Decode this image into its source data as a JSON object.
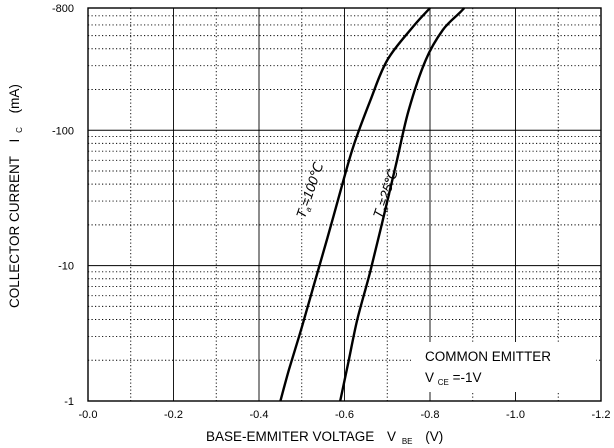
{
  "chart_data": {
    "type": "line",
    "title": "",
    "xlabel": "BASE-EMMITER VOLTAGE",
    "xlabel_symbol": "V",
    "xlabel_symbol_sub": "BE",
    "xlabel_unit": "(V)",
    "ylabel": "COLLECTOR CURRENT",
    "ylabel_symbol": "I",
    "ylabel_symbol_sub": "C",
    "ylabel_unit": "(mA)",
    "x_scale": "linear",
    "y_scale": "log",
    "xlim": [
      0.0,
      -1.2
    ],
    "ylim": [
      -1,
      -800
    ],
    "x_ticks": [
      0.0,
      -0.2,
      -0.4,
      -0.6,
      -0.8,
      -1.0,
      -1.2
    ],
    "x_tick_labels": [
      "-0.0",
      "-0.2",
      "-0.4",
      "-0.6",
      "-0.8",
      "-1.0",
      "-1.2"
    ],
    "x_minor_ticks": [
      -0.1,
      -0.3,
      -0.5,
      -0.7,
      -0.9,
      -1.1
    ],
    "y_ticks": [
      -1,
      -10,
      -100,
      -800
    ],
    "y_tick_labels": [
      "-1",
      "-10",
      "-100",
      "-800"
    ],
    "grid": true,
    "series": [
      {
        "label_prefix": "T",
        "label_sub": "a",
        "label_suffix": "=100℃",
        "x": [
          -0.45,
          -0.47,
          -0.5,
          -0.53,
          -0.56,
          -0.59,
          -0.62,
          -0.66,
          -0.7,
          -0.76,
          -0.8
        ],
        "y": [
          -1,
          -1.7,
          -3.5,
          -7.5,
          -16,
          -35,
          -75,
          -165,
          -330,
          -580,
          -800
        ]
      },
      {
        "label_prefix": "T",
        "label_sub": "a",
        "label_suffix": "=25℃",
        "x": [
          -0.59,
          -0.61,
          -0.63,
          -0.66,
          -0.69,
          -0.72,
          -0.75,
          -0.79,
          -0.83,
          -0.87,
          -0.88
        ],
        "y": [
          -1,
          -2,
          -4,
          -9,
          -22,
          -55,
          -140,
          -330,
          -550,
          -740,
          -800
        ]
      }
    ],
    "annotation": {
      "line1": "COMMON EMITTER",
      "line2_prefix": "V",
      "line2_sub": "CE",
      "line2_suffix": "=-1V"
    }
  }
}
